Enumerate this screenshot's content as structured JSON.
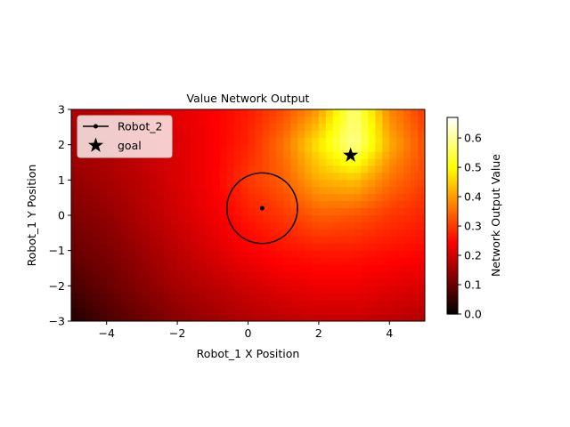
{
  "chart_data": {
    "type": "heatmap",
    "title": "Value Network Output",
    "xlabel": "Robot_1 X Position",
    "ylabel": "Robot_1 Y Position",
    "xlim": [
      -5,
      5
    ],
    "ylim": [
      -3,
      3
    ],
    "x_ticks": [
      -4,
      -2,
      0,
      2,
      4
    ],
    "x_tick_labels": [
      "−4",
      "−2",
      "0",
      "2",
      "4"
    ],
    "y_ticks": [
      -3,
      -2,
      -1,
      0,
      1,
      2,
      3
    ],
    "y_tick_labels": [
      "−3",
      "−2",
      "−1",
      "0",
      "1",
      "2",
      "3"
    ],
    "colormap": "hot",
    "colorbar": {
      "label": "Network Output Value",
      "range": [
        0.0,
        0.67
      ],
      "ticks": [
        0.0,
        0.1,
        0.2,
        0.3,
        0.4,
        0.5,
        0.6
      ],
      "tick_labels": [
        "0.0",
        "0.1",
        "0.2",
        "0.3",
        "0.4",
        "0.5",
        "0.6"
      ]
    },
    "grid": false,
    "legend_position": "top-left",
    "legend": [
      {
        "label": "Robot_2",
        "marker": "line-dot"
      },
      {
        "label": "goal",
        "marker": "star"
      }
    ],
    "heatmap_grid": {
      "x_range": [
        -5,
        5
      ],
      "y_range": [
        -3,
        3
      ],
      "rows": 7,
      "cols": 11,
      "row_y_values": [
        3,
        2,
        1,
        0,
        -1,
        -2,
        -3
      ],
      "col_x_values": [
        -5,
        -4,
        -3,
        -2,
        -1,
        0,
        1,
        2,
        3,
        4,
        5
      ],
      "values": [
        [
          0.17,
          0.18,
          0.2,
          0.22,
          0.24,
          0.27,
          0.32,
          0.4,
          0.58,
          0.38,
          0.3
        ],
        [
          0.16,
          0.17,
          0.19,
          0.21,
          0.24,
          0.28,
          0.36,
          0.48,
          0.6,
          0.42,
          0.32
        ],
        [
          0.14,
          0.16,
          0.18,
          0.21,
          0.24,
          0.3,
          0.34,
          0.42,
          0.44,
          0.36,
          0.31
        ],
        [
          0.12,
          0.14,
          0.17,
          0.2,
          0.23,
          0.27,
          0.3,
          0.34,
          0.33,
          0.3,
          0.28
        ],
        [
          0.1,
          0.12,
          0.15,
          0.18,
          0.21,
          0.24,
          0.26,
          0.27,
          0.27,
          0.26,
          0.25
        ],
        [
          0.07,
          0.1,
          0.13,
          0.16,
          0.18,
          0.2,
          0.22,
          0.23,
          0.23,
          0.22,
          0.21
        ],
        [
          0.03,
          0.07,
          0.1,
          0.13,
          0.15,
          0.17,
          0.18,
          0.19,
          0.19,
          0.18,
          0.17
        ]
      ]
    },
    "robot_2": {
      "x": 0.4,
      "y": 0.2,
      "circle_radius": 1.0
    },
    "goal": {
      "x": 2.9,
      "y": 1.7
    }
  }
}
